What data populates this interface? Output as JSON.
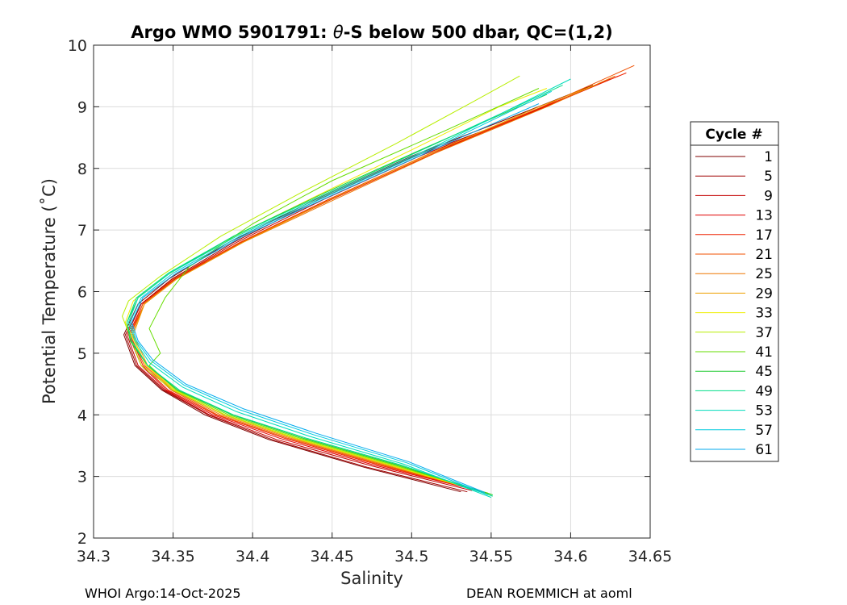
{
  "chart_data": {
    "type": "line",
    "title_prefix": "Argo WMO 5901791: ",
    "title_theta": "θ",
    "title_suffix": "-S below 500 dbar,  QC=(1,2)",
    "xlabel": "Salinity",
    "ylabel": "Potential Temperature (˚C)",
    "xlim": [
      34.3,
      34.65
    ],
    "ylim": [
      2,
      10
    ],
    "xticks": [
      "34.3",
      "34.35",
      "34.4",
      "34.45",
      "34.5",
      "34.55",
      "34.6",
      "34.65"
    ],
    "yticks": [
      "2",
      "3",
      "4",
      "5",
      "6",
      "7",
      "8",
      "9",
      "10"
    ],
    "grid": true,
    "legend": {
      "title": "Cycle #",
      "placement": "outside-right",
      "entries": [
        "1",
        "5",
        "9",
        "13",
        "17",
        "21",
        "25",
        "29",
        "33",
        "37",
        "41",
        "45",
        "49",
        "53",
        "57",
        "61"
      ],
      "colors": [
        "#7f0000",
        "#a00000",
        "#c20000",
        "#e00000",
        "#ee2200",
        "#f05000",
        "#ee7700",
        "#eea000",
        "#eeee00",
        "#b8ee00",
        "#66dd00",
        "#22cc33",
        "#00dd88",
        "#00dcbb",
        "#00ccdd",
        "#00aaee"
      ]
    },
    "series": [
      {
        "name": "1",
        "points": [
          [
            34.531,
            2.75
          ],
          [
            34.47,
            3.15
          ],
          [
            34.41,
            3.6
          ],
          [
            34.37,
            4.0
          ],
          [
            34.343,
            4.4
          ],
          [
            34.326,
            4.8
          ],
          [
            34.319,
            5.3
          ],
          [
            34.328,
            5.8
          ],
          [
            34.347,
            6.2
          ],
          [
            34.385,
            6.8
          ],
          [
            34.44,
            7.5
          ],
          [
            34.5,
            8.2
          ],
          [
            34.56,
            8.8
          ],
          [
            34.614,
            9.35
          ]
        ]
      },
      {
        "name": "5",
        "points": [
          [
            34.535,
            2.75
          ],
          [
            34.472,
            3.15
          ],
          [
            34.412,
            3.6
          ],
          [
            34.372,
            4.0
          ],
          [
            34.344,
            4.4
          ],
          [
            34.327,
            4.8
          ],
          [
            34.32,
            5.3
          ],
          [
            34.33,
            5.8
          ],
          [
            34.349,
            6.2
          ],
          [
            34.388,
            6.8
          ],
          [
            34.442,
            7.5
          ],
          [
            34.502,
            8.2
          ],
          [
            34.565,
            8.8
          ],
          [
            34.62,
            9.4
          ]
        ]
      },
      {
        "name": "9",
        "points": [
          [
            34.538,
            2.77
          ],
          [
            34.475,
            3.17
          ],
          [
            34.415,
            3.6
          ],
          [
            34.373,
            4.0
          ],
          [
            34.345,
            4.4
          ],
          [
            34.328,
            4.8
          ],
          [
            34.321,
            5.3
          ],
          [
            34.33,
            5.8
          ],
          [
            34.35,
            6.2
          ],
          [
            34.39,
            6.8
          ],
          [
            34.445,
            7.5
          ],
          [
            34.505,
            8.2
          ],
          [
            34.57,
            8.85
          ],
          [
            34.625,
            9.45
          ]
        ]
      },
      {
        "name": "13",
        "points": [
          [
            34.54,
            2.78
          ],
          [
            34.477,
            3.18
          ],
          [
            34.417,
            3.62
          ],
          [
            34.375,
            4.0
          ],
          [
            34.346,
            4.4
          ],
          [
            34.33,
            4.8
          ],
          [
            34.322,
            5.3
          ],
          [
            34.331,
            5.8
          ],
          [
            34.351,
            6.2
          ],
          [
            34.392,
            6.8
          ],
          [
            34.448,
            7.5
          ],
          [
            34.508,
            8.2
          ],
          [
            34.575,
            8.9
          ],
          [
            34.63,
            9.5
          ]
        ]
      },
      {
        "name": "17",
        "points": [
          [
            34.542,
            2.77
          ],
          [
            34.48,
            3.18
          ],
          [
            34.42,
            3.62
          ],
          [
            34.377,
            4.0
          ],
          [
            34.347,
            4.4
          ],
          [
            34.331,
            4.8
          ],
          [
            34.323,
            5.3
          ],
          [
            34.332,
            5.8
          ],
          [
            34.352,
            6.2
          ],
          [
            34.393,
            6.8
          ],
          [
            34.45,
            7.5
          ],
          [
            34.51,
            8.2
          ],
          [
            34.578,
            8.95
          ],
          [
            34.635,
            9.55
          ]
        ]
      },
      {
        "name": "21",
        "points": [
          [
            34.544,
            2.76
          ],
          [
            34.482,
            3.18
          ],
          [
            34.422,
            3.62
          ],
          [
            34.378,
            4.0
          ],
          [
            34.349,
            4.4
          ],
          [
            34.332,
            4.8
          ],
          [
            34.323,
            5.3
          ],
          [
            34.331,
            5.8
          ],
          [
            34.35,
            6.2
          ],
          [
            34.392,
            6.8
          ],
          [
            34.449,
            7.5
          ],
          [
            34.512,
            8.25
          ],
          [
            34.582,
            9.0
          ],
          [
            34.64,
            9.67
          ]
        ]
      },
      {
        "name": "25",
        "points": [
          [
            34.546,
            2.74
          ],
          [
            34.484,
            3.18
          ],
          [
            34.424,
            3.62
          ],
          [
            34.38,
            4.0
          ],
          [
            34.35,
            4.4
          ],
          [
            34.333,
            4.8
          ],
          [
            34.324,
            5.3
          ],
          [
            34.332,
            5.8
          ],
          [
            34.352,
            6.2
          ],
          [
            34.394,
            6.8
          ],
          [
            34.452,
            7.5
          ],
          [
            34.515,
            8.25
          ],
          [
            34.585,
            9.0
          ],
          [
            34.628,
            9.5
          ]
        ]
      },
      {
        "name": "29",
        "points": [
          [
            34.548,
            2.73
          ],
          [
            34.486,
            3.18
          ],
          [
            34.426,
            3.62
          ],
          [
            34.382,
            4.0
          ],
          [
            34.351,
            4.4
          ],
          [
            34.334,
            4.8
          ],
          [
            34.325,
            5.3
          ],
          [
            34.332,
            5.8
          ],
          [
            34.352,
            6.2
          ],
          [
            34.394,
            6.8
          ],
          [
            34.453,
            7.55
          ],
          [
            34.517,
            8.3
          ],
          [
            34.58,
            9.0
          ],
          [
            34.615,
            9.35
          ]
        ]
      },
      {
        "name": "33",
        "points": [
          [
            34.548,
            2.72
          ],
          [
            34.487,
            3.18
          ],
          [
            34.427,
            3.62
          ],
          [
            34.383,
            4.0
          ],
          [
            34.351,
            4.4
          ],
          [
            34.333,
            4.8
          ],
          [
            34.32,
            5.5
          ],
          [
            34.325,
            5.85
          ],
          [
            34.345,
            6.25
          ],
          [
            34.385,
            6.85
          ],
          [
            34.44,
            7.55
          ],
          [
            34.5,
            8.3
          ],
          [
            34.555,
            9.0
          ],
          [
            34.585,
            9.3
          ]
        ]
      },
      {
        "name": "37",
        "points": [
          [
            34.549,
            2.72
          ],
          [
            34.488,
            3.18
          ],
          [
            34.428,
            3.62
          ],
          [
            34.383,
            4.0
          ],
          [
            34.35,
            4.4
          ],
          [
            34.33,
            4.8
          ],
          [
            34.318,
            5.6
          ],
          [
            34.322,
            5.85
          ],
          [
            34.342,
            6.25
          ],
          [
            34.38,
            6.9
          ],
          [
            34.43,
            7.6
          ],
          [
            34.49,
            8.4
          ],
          [
            34.54,
            9.1
          ],
          [
            34.568,
            9.5
          ]
        ]
      },
      {
        "name": "41",
        "points": [
          [
            34.55,
            2.71
          ],
          [
            34.49,
            3.18
          ],
          [
            34.43,
            3.62
          ],
          [
            34.385,
            4.0
          ],
          [
            34.352,
            4.4
          ],
          [
            34.335,
            4.8
          ],
          [
            34.342,
            5.0
          ],
          [
            34.335,
            5.4
          ],
          [
            34.345,
            5.9
          ],
          [
            34.36,
            6.4
          ],
          [
            34.4,
            7.1
          ],
          [
            34.45,
            7.8
          ],
          [
            34.52,
            8.6
          ],
          [
            34.58,
            9.3
          ]
        ]
      },
      {
        "name": "45",
        "points": [
          [
            34.551,
            2.7
          ],
          [
            34.492,
            3.18
          ],
          [
            34.432,
            3.62
          ],
          [
            34.387,
            4.0
          ],
          [
            34.353,
            4.4
          ],
          [
            34.334,
            4.8
          ],
          [
            34.323,
            5.2
          ],
          [
            34.321,
            5.5
          ],
          [
            34.328,
            5.9
          ],
          [
            34.348,
            6.3
          ],
          [
            34.388,
            6.9
          ],
          [
            34.445,
            7.6
          ],
          [
            34.51,
            8.35
          ],
          [
            34.585,
            9.2
          ]
        ]
      },
      {
        "name": "49",
        "points": [
          [
            34.551,
            2.68
          ],
          [
            34.494,
            3.18
          ],
          [
            34.434,
            3.62
          ],
          [
            34.388,
            4.0
          ],
          [
            34.354,
            4.4
          ],
          [
            34.334,
            4.8
          ],
          [
            34.324,
            5.2
          ],
          [
            34.321,
            5.5
          ],
          [
            34.327,
            5.9
          ],
          [
            34.347,
            6.3
          ],
          [
            34.388,
            6.9
          ],
          [
            34.447,
            7.6
          ],
          [
            34.515,
            8.4
          ],
          [
            34.595,
            9.35
          ]
        ]
      },
      {
        "name": "53",
        "points": [
          [
            34.55,
            2.66
          ],
          [
            34.495,
            3.2
          ],
          [
            34.436,
            3.65
          ],
          [
            34.39,
            4.05
          ],
          [
            34.356,
            4.45
          ],
          [
            34.335,
            4.85
          ],
          [
            34.326,
            5.2
          ],
          [
            34.322,
            5.5
          ],
          [
            34.328,
            5.9
          ],
          [
            34.348,
            6.3
          ],
          [
            34.39,
            6.9
          ],
          [
            34.449,
            7.6
          ],
          [
            34.518,
            8.4
          ],
          [
            34.6,
            9.45
          ]
        ]
      },
      {
        "name": "57",
        "points": [
          [
            34.548,
            2.7
          ],
          [
            34.497,
            3.22
          ],
          [
            34.438,
            3.68
          ],
          [
            34.392,
            4.08
          ],
          [
            34.357,
            4.48
          ],
          [
            34.336,
            4.88
          ],
          [
            34.327,
            5.2
          ],
          [
            34.323,
            5.5
          ],
          [
            34.33,
            5.9
          ],
          [
            34.35,
            6.3
          ],
          [
            34.392,
            6.9
          ],
          [
            34.451,
            7.6
          ],
          [
            34.52,
            8.4
          ],
          [
            34.588,
            9.25
          ]
        ]
      },
      {
        "name": "61",
        "points": [
          [
            34.546,
            2.74
          ],
          [
            34.498,
            3.24
          ],
          [
            34.44,
            3.7
          ],
          [
            34.394,
            4.1
          ],
          [
            34.358,
            4.5
          ],
          [
            34.337,
            4.9
          ],
          [
            34.328,
            5.2
          ],
          [
            34.324,
            5.5
          ],
          [
            34.331,
            5.9
          ],
          [
            34.352,
            6.3
          ],
          [
            34.394,
            6.9
          ],
          [
            34.453,
            7.6
          ],
          [
            34.522,
            8.4
          ],
          [
            34.58,
            9.05
          ]
        ]
      }
    ]
  },
  "footer": {
    "left": "WHOI Argo:14-Oct-2025",
    "right": "DEAN ROEMMICH at aoml"
  }
}
